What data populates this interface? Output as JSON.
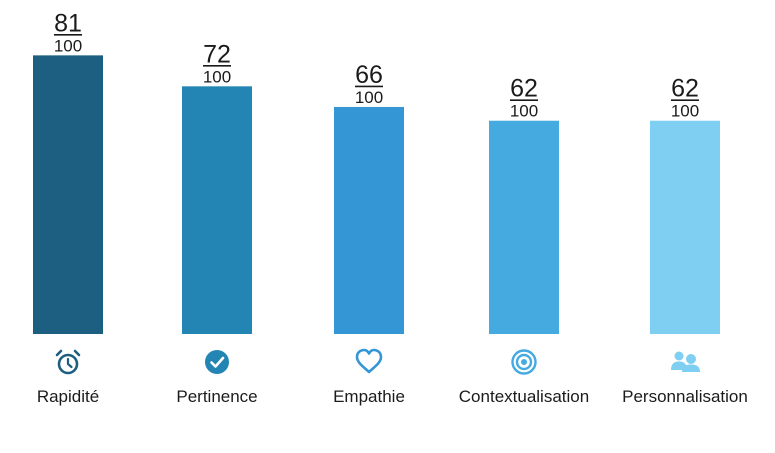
{
  "chart_data": {
    "type": "bar",
    "categories": [
      "Rapidité",
      "Pertinence",
      "Empathie",
      "Contextualisation",
      "Personnalisation"
    ],
    "values": [
      81,
      72,
      66,
      62,
      62
    ],
    "denominator": "100",
    "ylim": [
      0,
      100
    ],
    "grid": false,
    "colors": [
      "#1d5f80",
      "#2385b3",
      "#3496d5",
      "#45aae0",
      "#7fcff3"
    ],
    "icons": [
      "alarm-clock-icon",
      "check-circle-icon",
      "heart-icon",
      "target-icon",
      "users-icon"
    ]
  }
}
